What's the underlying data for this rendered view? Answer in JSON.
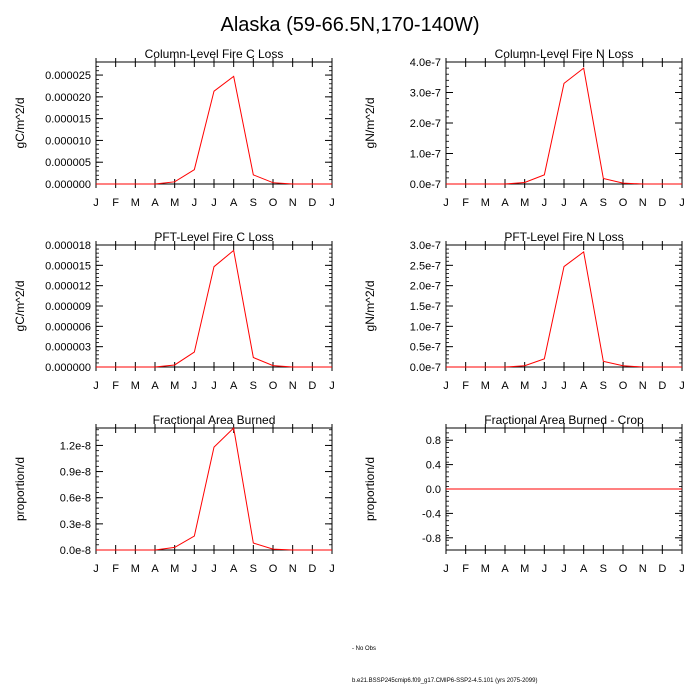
{
  "page": {
    "title": "Alaska (59-66.5N,170-140W)"
  },
  "colors": {
    "series": "#ff0000",
    "axis": "#000000",
    "background": "#ffffff"
  },
  "chart_data": [
    {
      "type": "line",
      "title": "Column-Level Fire C Loss",
      "ylabel": "gC/m^2/d",
      "categories": [
        "J",
        "F",
        "M",
        "A",
        "M",
        "J",
        "J",
        "A",
        "S",
        "O",
        "N",
        "D",
        "J"
      ],
      "ylim": [
        0,
        2.8e-05
      ],
      "ticks": [
        "0.000000",
        "0.000005",
        "0.000010",
        "0.000015",
        "0.000020",
        "0.000025"
      ],
      "tick_values": [
        0,
        5e-06,
        1e-05,
        1.5e-05,
        2e-05,
        2.5e-05
      ],
      "series": [
        {
          "name": "b.e21.BSSP245cmip6.f09_g17.CMIP6-SSP2-4.5.101 (yrs 2075-2099)",
          "values": [
            0,
            0,
            0,
            0,
            5e-07,
            3.3e-06,
            2.13e-05,
            2.47e-05,
            2.1e-06,
            3e-07,
            0,
            0,
            0
          ]
        }
      ]
    },
    {
      "type": "line",
      "title": "Column-Level Fire N Loss",
      "ylabel": "gN/m^2/d",
      "categories": [
        "J",
        "F",
        "M",
        "A",
        "M",
        "J",
        "J",
        "A",
        "S",
        "O",
        "N",
        "D",
        "J"
      ],
      "ylim": [
        0,
        4e-07
      ],
      "ticks": [
        "0.0e-7",
        "1.0e-7",
        "2.0e-7",
        "3.0e-7",
        "4.0e-7"
      ],
      "tick_values": [
        0,
        1e-07,
        2e-07,
        3e-07,
        4e-07
      ],
      "series": [
        {
          "name": "b.e21.BSSP245cmip6.f09_g17.CMIP6-SSP2-4.5.101 (yrs 2075-2099)",
          "values": [
            0,
            0,
            0,
            0,
            5e-09,
            3e-08,
            3.3e-07,
            3.8e-07,
            1.8e-08,
            3e-09,
            0,
            0,
            0
          ]
        }
      ]
    },
    {
      "type": "line",
      "title": "PFT-Level Fire C Loss",
      "ylabel": "gC/m^2/d",
      "categories": [
        "J",
        "F",
        "M",
        "A",
        "M",
        "J",
        "J",
        "A",
        "S",
        "O",
        "N",
        "D",
        "J"
      ],
      "ylim": [
        0,
        1.8e-05
      ],
      "ticks": [
        "0.000000",
        "0.000003",
        "0.000006",
        "0.000009",
        "0.000012",
        "0.000015",
        "0.000018"
      ],
      "tick_values": [
        0,
        3e-06,
        6e-06,
        9e-06,
        1.2e-05,
        1.5e-05,
        1.8e-05
      ],
      "series": [
        {
          "name": "b.e21.BSSP245cmip6.f09_g17.CMIP6-SSP2-4.5.101 (yrs 2075-2099)",
          "values": [
            0,
            0,
            0,
            0,
            3e-07,
            2.2e-06,
            1.48e-05,
            1.72e-05,
            1.4e-06,
            2e-07,
            0,
            0,
            0
          ]
        }
      ]
    },
    {
      "type": "line",
      "title": "PFT-Level Fire N Loss",
      "ylabel": "gN/m^2/d",
      "categories": [
        "J",
        "F",
        "M",
        "A",
        "M",
        "J",
        "J",
        "A",
        "S",
        "O",
        "N",
        "D",
        "J"
      ],
      "ylim": [
        0,
        3e-07
      ],
      "ticks": [
        "0.0e-7",
        "0.5e-7",
        "1.0e-7",
        "1.5e-7",
        "2.0e-7",
        "2.5e-7",
        "3.0e-7"
      ],
      "tick_values": [
        0,
        5e-08,
        1e-07,
        1.5e-07,
        2e-07,
        2.5e-07,
        3e-07
      ],
      "series": [
        {
          "name": "b.e21.BSSP245cmip6.f09_g17.CMIP6-SSP2-4.5.101 (yrs 2075-2099)",
          "values": [
            0,
            0,
            0,
            0,
            3e-09,
            2e-08,
            2.47e-07,
            2.83e-07,
            1.4e-08,
            3e-09,
            0,
            0,
            0
          ]
        }
      ]
    },
    {
      "type": "line",
      "title": "Fractional Area Burned",
      "ylabel": "proportion/d",
      "categories": [
        "J",
        "F",
        "M",
        "A",
        "M",
        "J",
        "J",
        "A",
        "S",
        "O",
        "N",
        "D",
        "J"
      ],
      "ylim": [
        0,
        1.4e-08
      ],
      "ticks": [
        "0.0e-8",
        "0.3e-8",
        "0.6e-8",
        "0.9e-8",
        "1.2e-8"
      ],
      "tick_values": [
        0,
        3e-09,
        6e-09,
        9e-09,
        1.2e-08
      ],
      "series": [
        {
          "name": "b.e21.BSSP245cmip6.f09_g17.CMIP6-SSP2-4.5.101 (yrs 2075-2099)",
          "values": [
            0,
            0,
            0,
            0,
            3e-10,
            1.6e-09,
            1.18e-08,
            1.4e-08,
            8e-10,
            1e-10,
            0,
            0,
            0
          ]
        }
      ]
    },
    {
      "type": "line",
      "title": "Fractional Area Burned - Crop",
      "ylabel": "proportion/d",
      "categories": [
        "J",
        "F",
        "M",
        "A",
        "M",
        "J",
        "J",
        "A",
        "S",
        "O",
        "N",
        "D",
        "J"
      ],
      "ylim": [
        -1.0,
        1.0
      ],
      "ticks": [
        "-0.8",
        "-0.4",
        "0.0",
        "0.4",
        "0.8"
      ],
      "tick_values": [
        -0.8,
        -0.4,
        0.0,
        0.4,
        0.8
      ],
      "series": [
        {
          "name": "b.e21.BSSP245cmip6.f09_g17.CMIP6-SSP2-4.5.101 (yrs 2075-2099)",
          "values": [
            0,
            0,
            0,
            0,
            0,
            0,
            0,
            0,
            0,
            0,
            0,
            0,
            0
          ]
        }
      ]
    }
  ],
  "legend": {
    "obs_label": "- No Obs",
    "model_label": "b.e21.BSSP245cmip6.f09_g17.CMIP6-SSP2-4.5.101 (yrs 2075-2099)"
  }
}
